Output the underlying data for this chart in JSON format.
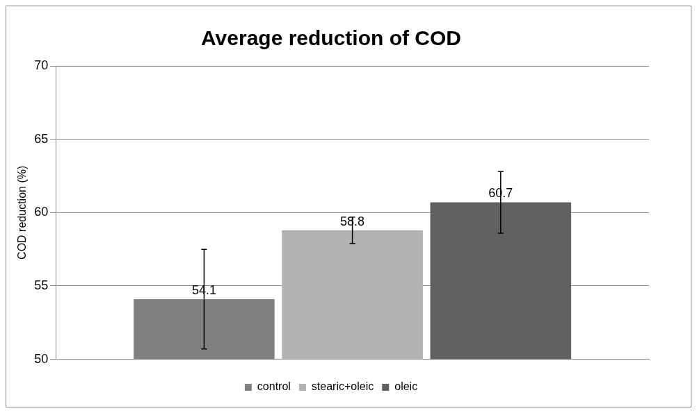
{
  "chart_data": {
    "type": "bar",
    "title": "Average reduction of COD",
    "ylabel": "COD reduction (%)",
    "categories": [
      null
    ],
    "series": [
      {
        "name": "control",
        "color": "#808080",
        "values": [
          54.1
        ],
        "errors": [
          3.4
        ]
      },
      {
        "name": "stearic+oleic",
        "color": "#b2b2b2",
        "values": [
          58.8
        ],
        "errors": [
          0.9
        ]
      },
      {
        "name": "oleic",
        "color": "#606060",
        "values": [
          60.7
        ],
        "errors": [
          2.1
        ]
      }
    ],
    "ylim": [
      50,
      70
    ],
    "yticks": [
      50,
      55,
      60,
      65,
      70
    ],
    "grid": "y",
    "legend": "bottom",
    "data_labels": true
  }
}
